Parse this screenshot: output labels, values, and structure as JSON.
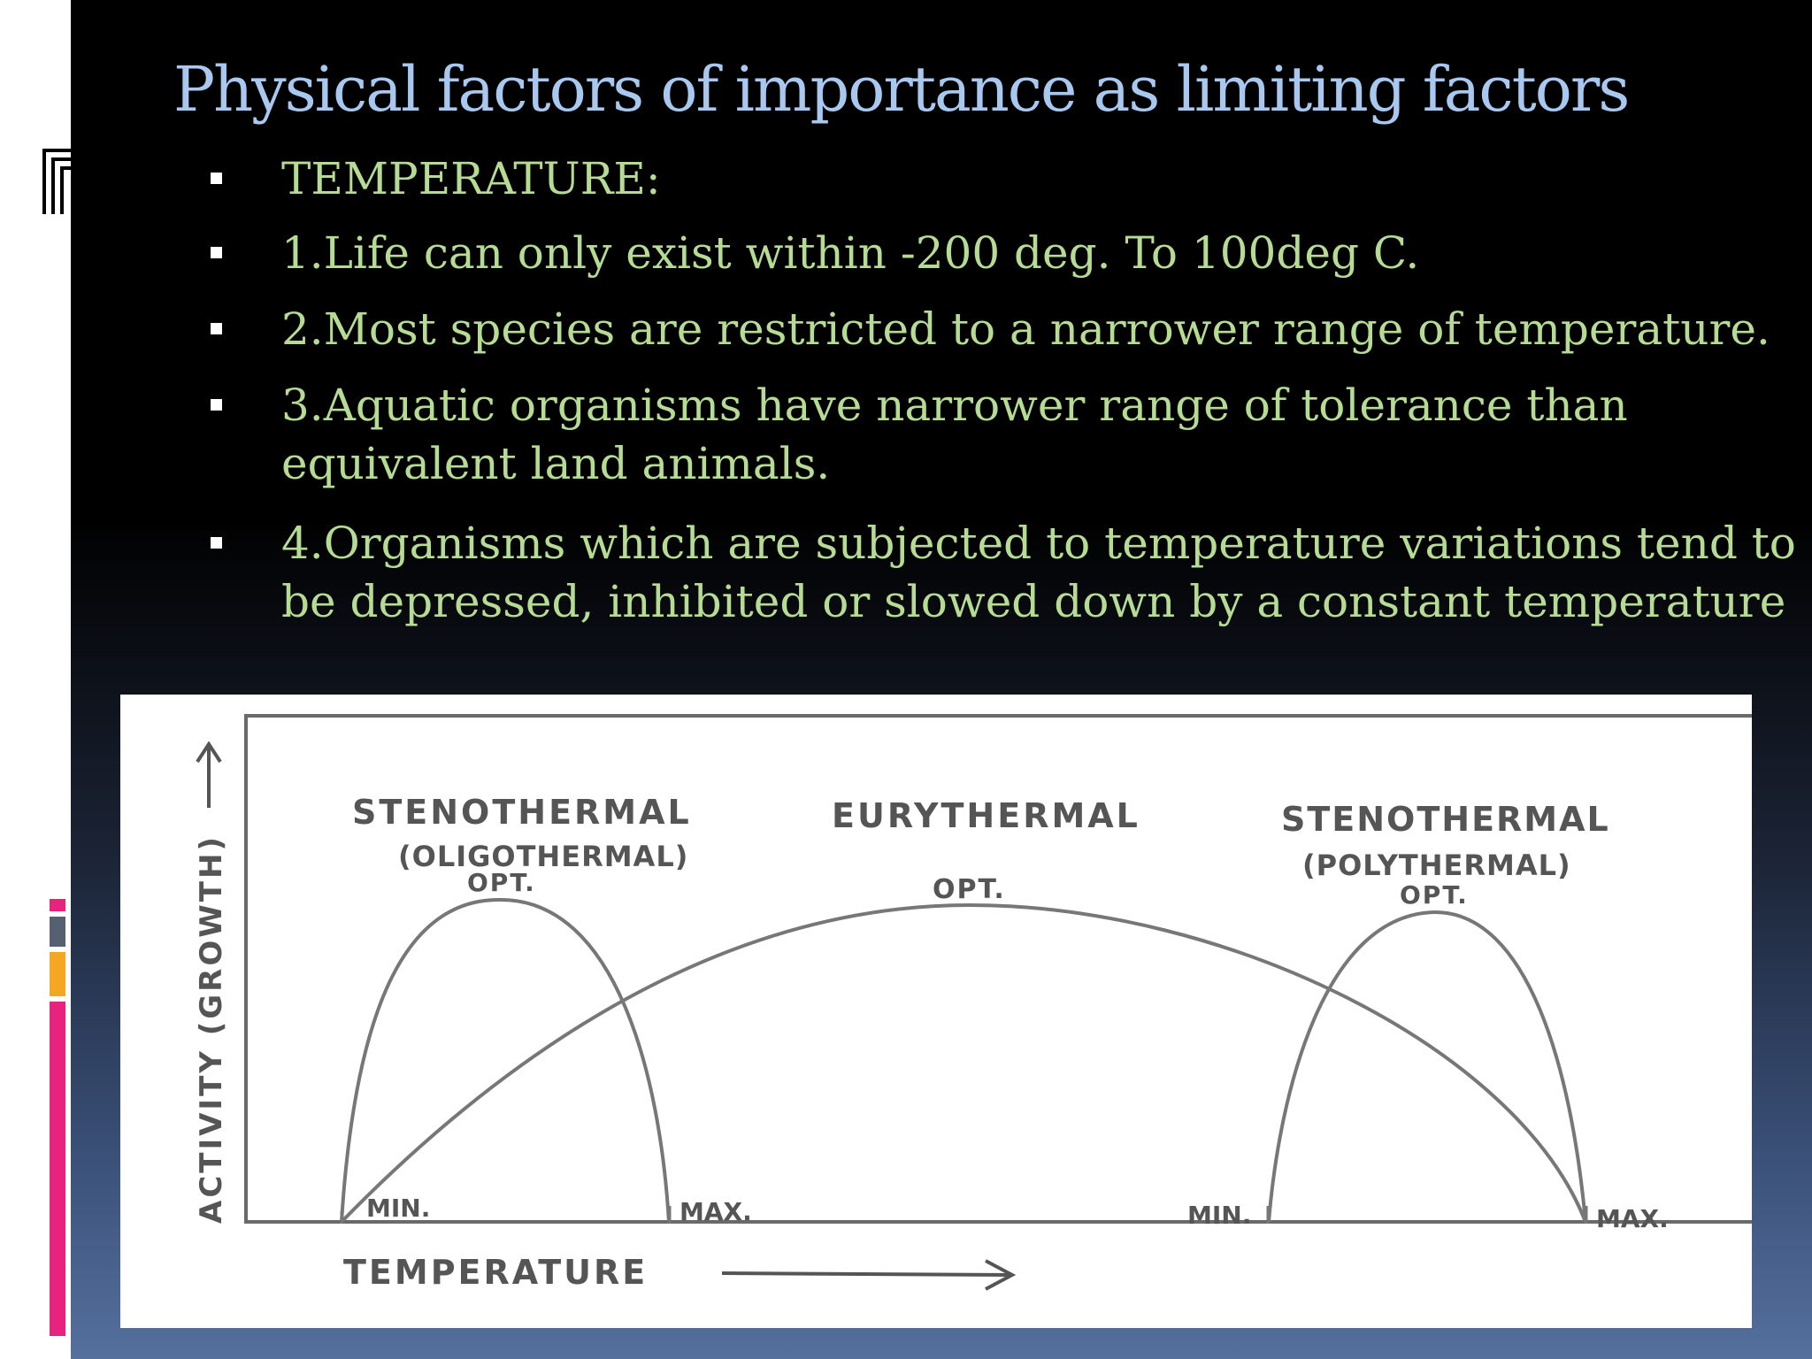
{
  "slide": {
    "title": "Physical factors of importance as limiting factors",
    "bullets": [
      {
        "lines": [
          "TEMPERATURE:"
        ]
      },
      {
        "lines": [
          "1.Life can only exist  within -200 deg. To 100deg C."
        ]
      },
      {
        "lines": [
          "2.Most species are restricted to a narrower range of temperature."
        ]
      },
      {
        "lines": [
          "3.Aquatic organisms have narrower range of tolerance than",
          "equivalent land animals."
        ]
      },
      {
        "lines": [
          "4.Organisms which are subjected to temperature variations tend to",
          "be depressed, inhibited or slowed down by a constant temperature"
        ]
      }
    ]
  },
  "diagram": {
    "y_axis_label": "ACTIVITY (GROWTH)",
    "x_axis_label": "TEMPERATURE",
    "curves": {
      "stenothermal_low": {
        "title": "STENOTHERMAL",
        "subtitle": "(OLIGOTHERMAL)",
        "opt": "OPT.",
        "min": "MIN.",
        "max": "MAX."
      },
      "eurythermal": {
        "title": "EURYTHERMAL",
        "opt": "OPT."
      },
      "stenothermal_high": {
        "title": "STENOTHERMAL",
        "subtitle": "(POLYTHERMAL)",
        "opt": "OPT.",
        "min": "MIN.",
        "max": "MAX."
      }
    }
  },
  "colors": {
    "title": "#a8c8f0",
    "bullet_text": "#b6dc94",
    "figure_ink": "#555555",
    "accent_pink": "#e8237d",
    "accent_gray": "#566070",
    "accent_orange": "#f5a623"
  }
}
